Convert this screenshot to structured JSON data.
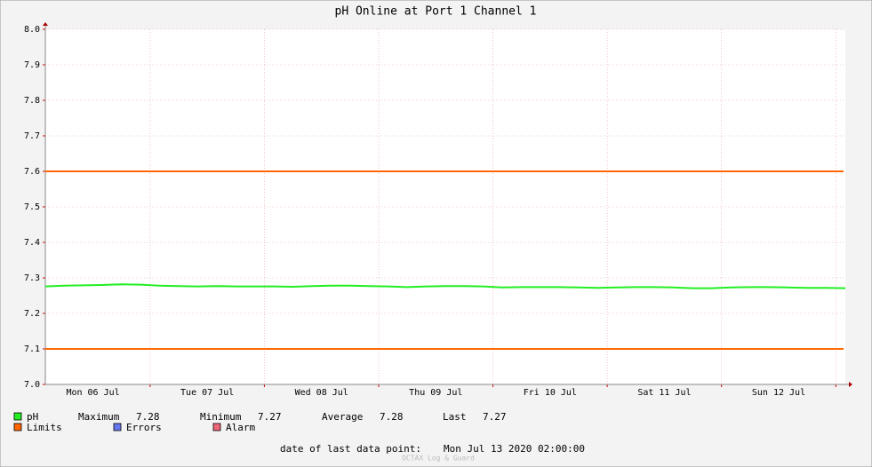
{
  "chart_data": {
    "type": "line",
    "title": "pH Online at Port 1 Channel 1",
    "x": [
      2,
      6,
      10,
      14,
      18,
      22,
      26,
      30,
      34,
      38,
      42,
      46,
      50,
      54,
      58,
      62,
      66,
      70,
      74,
      78,
      82,
      86,
      90,
      94,
      98,
      102,
      106,
      110,
      114,
      118,
      122,
      126,
      130,
      134,
      138,
      142,
      146,
      150,
      154,
      158,
      162,
      166,
      170
    ],
    "xlim": [
      2,
      170
    ],
    "xticks": [
      {
        "value": 12,
        "label": "Mon 06 Jul"
      },
      {
        "value": 36,
        "label": "Tue 07 Jul"
      },
      {
        "value": 60,
        "label": "Wed 08 Jul"
      },
      {
        "value": 84,
        "label": "Thu 09 Jul"
      },
      {
        "value": 108,
        "label": "Fri 10 Jul"
      },
      {
        "value": 132,
        "label": "Sat 11 Jul"
      },
      {
        "value": 156,
        "label": "Sun 12 Jul"
      }
    ],
    "xminorticks": [
      24,
      48,
      72,
      96,
      120,
      144,
      168
    ],
    "series": [
      {
        "name": "pH",
        "color": "#22ee22",
        "values": [
          7.276,
          7.278,
          7.279,
          7.28,
          7.282,
          7.281,
          7.278,
          7.277,
          7.276,
          7.277,
          7.276,
          7.276,
          7.276,
          7.275,
          7.277,
          7.278,
          7.278,
          7.277,
          7.276,
          7.274,
          7.276,
          7.277,
          7.277,
          7.276,
          7.273,
          7.274,
          7.274,
          7.274,
          7.273,
          7.272,
          7.273,
          7.274,
          7.274,
          7.273,
          7.271,
          7.271,
          7.273,
          7.274,
          7.274,
          7.273,
          7.272,
          7.272,
          7.271
        ]
      }
    ],
    "limits": {
      "name": "Limits",
      "color": "#ff6600",
      "values": [
        7.6,
        7.1
      ]
    },
    "legend_extra": [
      {
        "name": "Errors",
        "color": "#6677ee"
      },
      {
        "name": "Alarm",
        "color": "#ee6677"
      }
    ],
    "stats": [
      {
        "label": "Maximum",
        "value": 7.28
      },
      {
        "label": "Minimum",
        "value": 7.27
      },
      {
        "label": "Average",
        "value": 7.28
      },
      {
        "label": "Last",
        "value": 7.27
      }
    ],
    "ylim": [
      7.0,
      8.0
    ],
    "yticks": [
      {
        "value": 7.0,
        "label": "7.0"
      },
      7.1,
      7.2,
      7.3,
      7.4,
      7.5,
      7.6,
      7.7,
      7.8,
      7.9,
      {
        "value": 8.0,
        "label": "8.0"
      }
    ],
    "grid": true,
    "last_data_label": "date of last data point:",
    "last_data_date": "Mon Jul 13 2020 02:00:00",
    "footer": "OCTAX Log & Guard"
  }
}
